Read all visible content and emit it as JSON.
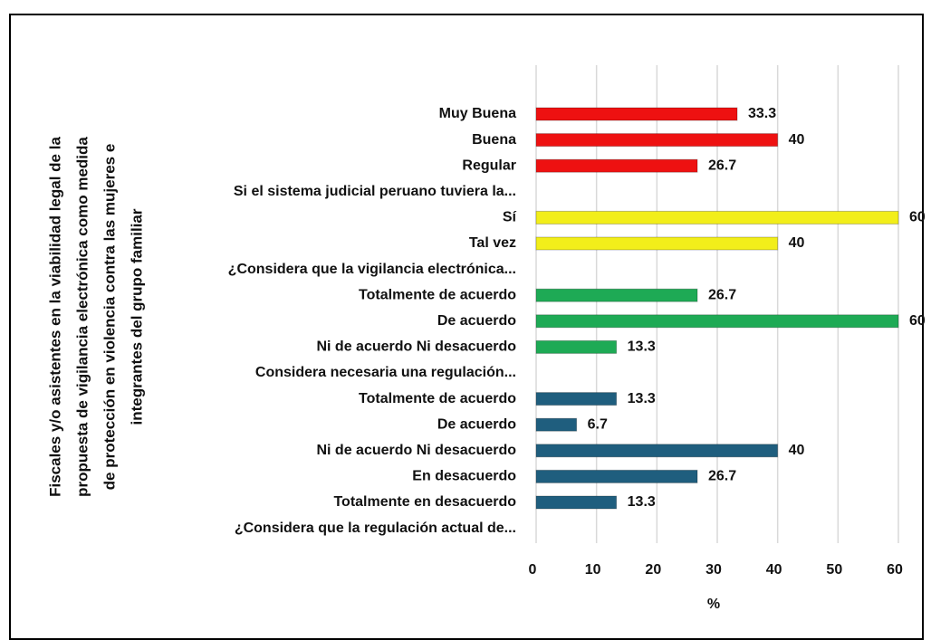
{
  "chart_data": {
    "type": "barh",
    "ylabel": [
      "Fiscales y/o asistentes en la viabilidad legal de la",
      "propuesta de vigilancia  electrónica como medida",
      "de protección en violencia  contra las mujeres e",
      "integrantes del grupo familiar"
    ],
    "xlabel": "%",
    "categories": [
      "Muy Buena",
      "Buena",
      "Regular",
      "Si el sistema judicial peruano tuviera la...",
      "Sí",
      "Tal vez",
      "¿Considera que la vigilancia electrónica...",
      "Totalmente de acuerdo",
      "De acuerdo",
      "Ni de acuerdo Ni desacuerdo",
      "Considera necesaria una regulación...",
      "Totalmente de acuerdo",
      "De acuerdo",
      "Ni de acuerdo Ni desacuerdo",
      "En desacuerdo",
      "Totalmente en desacuerdo",
      "¿Considera que la regulación actual de..."
    ],
    "values": [
      33.3,
      40,
      26.7,
      null,
      60,
      40,
      null,
      26.7,
      60,
      13.3,
      null,
      13.3,
      6.7,
      40,
      26.7,
      13.3,
      null
    ],
    "colors": [
      "#ee1111",
      "#ee1111",
      "#ee1111",
      null,
      "#f2ee1a",
      "#f2ee1a",
      null,
      "#1eaa55",
      "#1eaa55",
      "#1eaa55",
      null,
      "#1f5e7e",
      "#1f5e7e",
      "#1f5e7e",
      "#1f5e7e",
      "#1f5e7e",
      null
    ],
    "xlim": [
      0,
      60
    ],
    "xticks": [
      0,
      10,
      20,
      30,
      40,
      50,
      60
    ],
    "grid": true
  }
}
